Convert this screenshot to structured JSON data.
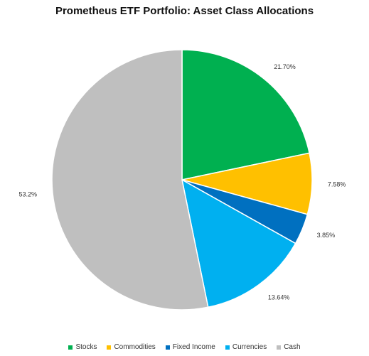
{
  "chart_data": {
    "type": "pie",
    "title": "Prometheus ETF Portfolio: Asset Class Allocations",
    "start_angle_deg": 0,
    "direction": "clockwise",
    "slices": [
      {
        "name": "Stocks",
        "value": 21.7,
        "label": "21.70%",
        "color": "#00b050"
      },
      {
        "name": "Commodities",
        "value": 7.58,
        "label": "7.58%",
        "color": "#ffc000"
      },
      {
        "name": "Fixed Income",
        "value": 3.85,
        "label": "3.85%",
        "color": "#0070c0"
      },
      {
        "name": "Currencies",
        "value": 13.64,
        "label": "13.64%",
        "color": "#00b0f0"
      },
      {
        "name": "Cash",
        "value": 53.2,
        "label": "53.2%",
        "color": "#bfbfbf"
      }
    ],
    "legend_position": "bottom"
  }
}
